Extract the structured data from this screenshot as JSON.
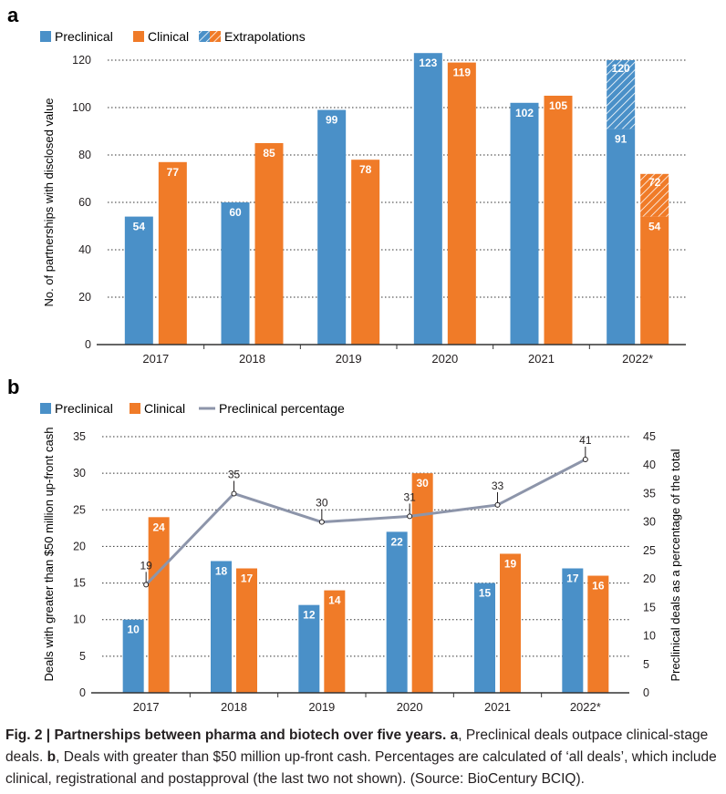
{
  "colors": {
    "preclinical": "#4a90c8",
    "clinical": "#f07b28",
    "line": "#8d95aa",
    "grid": "#333333",
    "text": "#231f20"
  },
  "panel_a": {
    "label": "a",
    "legend": [
      "Preclinical",
      "Clinical",
      "Extrapolations"
    ]
  },
  "panel_b": {
    "label": "b",
    "legend": [
      "Preclinical",
      "Clinical",
      "Preclinical percentage"
    ]
  },
  "caption": {
    "fig_label": "Fig. 2 | ",
    "title": "Partnerships between pharma and biotech over five years.",
    "a_label": " a",
    "a_text": ", Preclinical deals outpace clinical-stage deals.",
    "b_label": " b",
    "b_text": ", Deals with greater than $50 million up-front cash. Percentages are calculated of ‘all deals’, which include clinical, registrational and postapproval (the last two not shown). (Source: BioCentury BCIQ)."
  },
  "chart_data": [
    {
      "type": "bar",
      "panel": "a",
      "categories": [
        "2017",
        "2018",
        "2019",
        "2020",
        "2021",
        "2022*"
      ],
      "series": [
        {
          "name": "Preclinical",
          "values": [
            54,
            60,
            99,
            123,
            102,
            91
          ]
        },
        {
          "name": "Clinical",
          "values": [
            77,
            85,
            78,
            119,
            105,
            54
          ]
        }
      ],
      "extrapolations": {
        "name": "Extrapolations",
        "category": "2022*",
        "preclinical": 120,
        "clinical": 72
      },
      "xlabel": "",
      "ylabel": "No. of partnerships with disclosed value",
      "ylim": [
        0,
        120
      ],
      "yticks": [
        0,
        20,
        40,
        60,
        80,
        100,
        120
      ],
      "grid": true,
      "legend_position": "top-left"
    },
    {
      "type": "bar",
      "panel": "b",
      "categories": [
        "2017",
        "2018",
        "2019",
        "2020",
        "2021",
        "2022*"
      ],
      "series": [
        {
          "name": "Preclinical",
          "values": [
            10,
            18,
            12,
            22,
            15,
            17
          ]
        },
        {
          "name": "Clinical",
          "values": [
            24,
            17,
            14,
            30,
            19,
            16
          ]
        }
      ],
      "line_series": {
        "name": "Preclinical percentage",
        "values": [
          19,
          35,
          30,
          31,
          33,
          41
        ],
        "axis": "right"
      },
      "xlabel": "",
      "ylabel": "Deals with greater than $50 million up-front cash",
      "ylabel_right": "Preclinical deals as a percentage of the total",
      "ylim": [
        0,
        35
      ],
      "yticks": [
        0,
        5,
        10,
        15,
        20,
        25,
        30,
        35
      ],
      "ylim_right": [
        0,
        45
      ],
      "yticks_right": [
        0,
        5,
        10,
        15,
        20,
        25,
        30,
        35,
        40,
        45
      ],
      "grid": true,
      "legend_position": "top-left"
    }
  ]
}
